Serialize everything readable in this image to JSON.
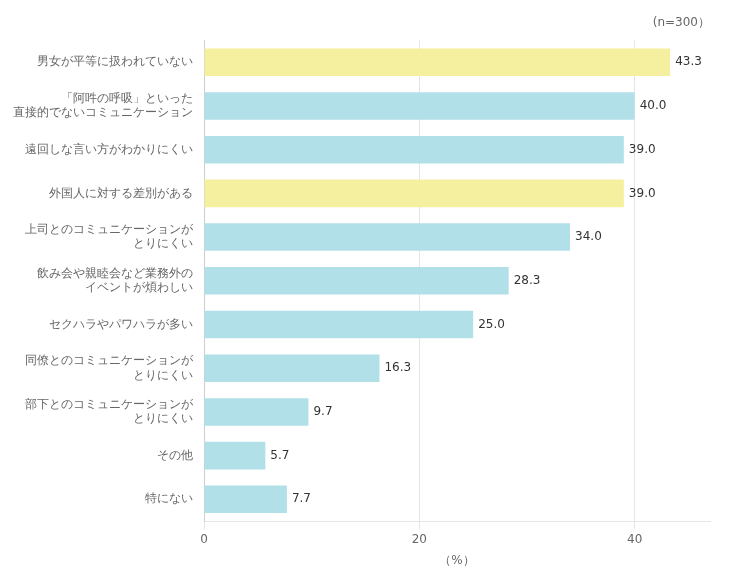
{
  "chart_data": {
    "type": "bar",
    "orientation": "horizontal",
    "annotation": "(n=300）",
    "xlabel": "（%）",
    "categories": [
      "男女が平等に扱われていない",
      "「阿吽の呼吸」といった\n直接的でないコミュニケーション",
      "遠回しな言い方がわかりにくい",
      "外国人に対する差別がある",
      "上司とのコミュニケーションが\nとりにくい",
      "飲み会や親睦会など業務外の\nイベントが煩わしい",
      "セクハラやパワハラが多い",
      "同僚とのコミュニケーションが\nとりにくい",
      "部下とのコミュニケーションが\nとりにくい",
      "その他",
      "特にない"
    ],
    "values": [
      43.3,
      40.0,
      39.0,
      39.0,
      34.0,
      28.3,
      25.0,
      16.3,
      9.7,
      5.7,
      7.7
    ],
    "value_labels": [
      "43.3",
      "40.0",
      "39.0",
      "39.0",
      "34.0",
      "28.3",
      "25.0",
      "16.3",
      "9.7",
      "5.7",
      "7.7"
    ],
    "colors": [
      "#f5f0a0",
      "#b2e0e8",
      "#b2e0e8",
      "#f5f0a0",
      "#b2e0e8",
      "#b2e0e8",
      "#b2e0e8",
      "#b2e0e8",
      "#b2e0e8",
      "#b2e0e8",
      "#b2e0e8"
    ],
    "data_labels": true,
    "xlim": [
      0,
      47
    ],
    "xticks": [
      0,
      20,
      40
    ],
    "grid": true
  }
}
